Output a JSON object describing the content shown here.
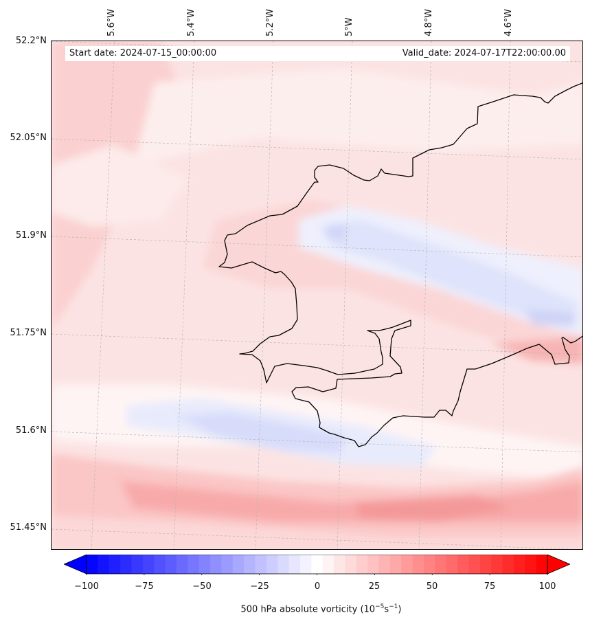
{
  "map": {
    "start_date": "Start date: 2024-07-15_00:00:00",
    "valid_date": "Valid_date: 2024-07-17T22:00:00.00",
    "longitude_labels": [
      "5.6°W",
      "5.4°W",
      "5.2°W",
      "5°W",
      "4.8°W",
      "4.6°W"
    ],
    "latitude_labels": [
      "52.2°N",
      "52.05°N",
      "51.9°N",
      "51.75°N",
      "51.6°N",
      "51.45°N"
    ],
    "field": "500 hPa absolute vorticity",
    "region": "South-west Wales coastline (Pembrokeshire / Carmarthen Bay)"
  },
  "colorbar": {
    "ticks": [
      "−100",
      "−75",
      "−50",
      "−25",
      "0",
      "25",
      "50",
      "75",
      "100"
    ],
    "min": -100,
    "max": 100,
    "levels": 41,
    "low_color": "#0000ff",
    "mid_color": "#ffffff",
    "high_color": "#ff0000",
    "title_main": "500 hPa absolute vorticity (10",
    "title_exp1": "−5",
    "title_mid": "s",
    "title_exp2": "−1",
    "title_end": ")"
  }
}
